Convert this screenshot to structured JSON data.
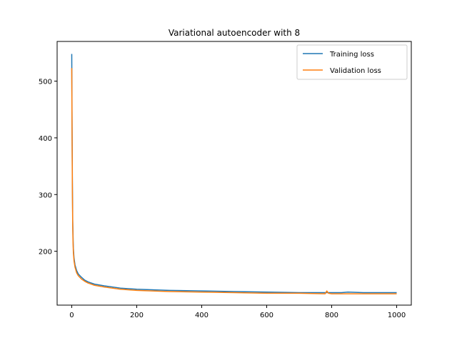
{
  "chart_data": {
    "type": "line",
    "title": "Variational autoencoder with 8",
    "xlabel": "",
    "ylabel": "",
    "xlim": [
      -45,
      1045
    ],
    "ylim": [
      105,
      570
    ],
    "xticks": [
      0,
      200,
      400,
      600,
      800,
      1000
    ],
    "yticks": [
      200,
      300,
      400,
      500
    ],
    "grid": false,
    "legend_position": "top-right",
    "series": [
      {
        "name": "Training loss",
        "color": "#1f77b4",
        "x": [
          0,
          1,
          2,
          3,
          4,
          5,
          7,
          10,
          15,
          20,
          30,
          40,
          50,
          70,
          100,
          150,
          200,
          300,
          400,
          500,
          600,
          700,
          780,
          800,
          830,
          850,
          900,
          1000
        ],
        "y": [
          548,
          420,
          320,
          255,
          225,
          205,
          188,
          176,
          166,
          160,
          154,
          149,
          146,
          142,
          139,
          135,
          133,
          131,
          130,
          129,
          128,
          127,
          127,
          127,
          127,
          128,
          127,
          127
        ]
      },
      {
        "name": "Validation loss",
        "color": "#ff7f0e",
        "x": [
          0,
          1,
          2,
          3,
          4,
          5,
          7,
          10,
          15,
          20,
          30,
          40,
          50,
          70,
          100,
          150,
          200,
          300,
          400,
          500,
          600,
          700,
          780,
          785,
          790,
          800,
          850,
          900,
          1000
        ],
        "y": [
          523,
          400,
          305,
          245,
          215,
          198,
          183,
          172,
          162,
          157,
          151,
          147,
          144,
          140,
          137,
          133,
          131,
          129,
          128,
          127,
          126,
          126,
          125,
          130,
          126,
          125,
          125,
          125,
          125
        ]
      }
    ]
  }
}
